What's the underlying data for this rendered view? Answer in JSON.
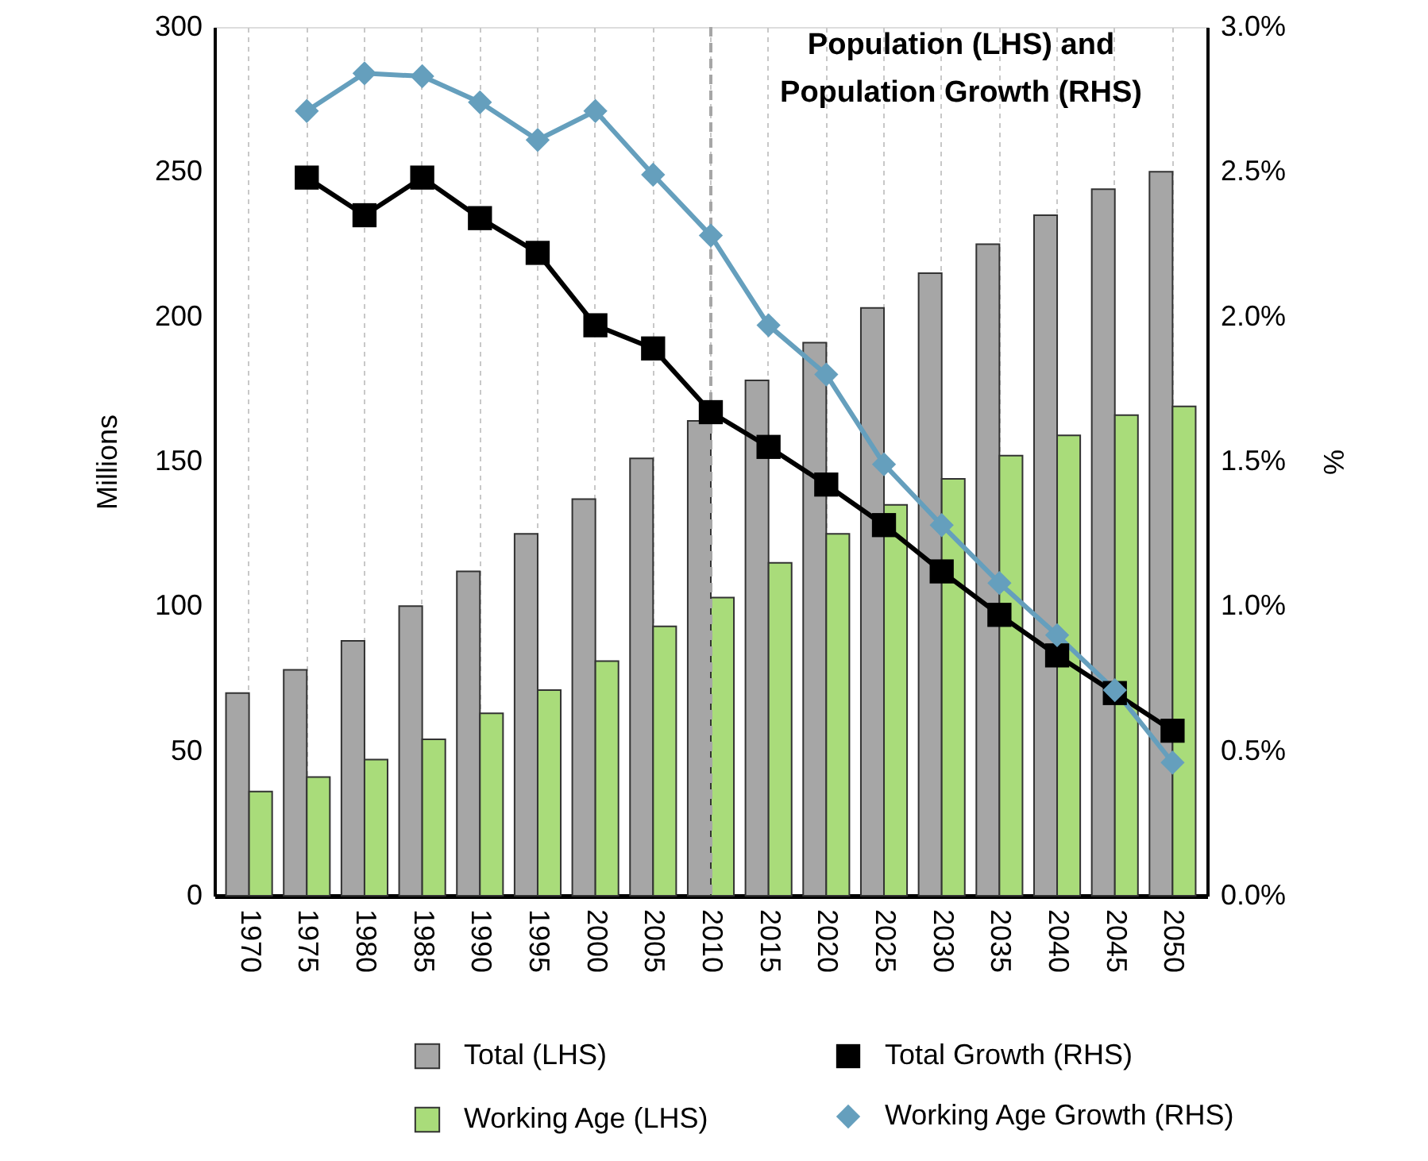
{
  "chart_data": {
    "type": "bar",
    "title": "Population (LHS) and\nPopulation Growth (RHS)",
    "categories": [
      "1970",
      "1975",
      "1980",
      "1985",
      "1990",
      "1995",
      "2000",
      "2005",
      "2010",
      "2015",
      "2020",
      "2025",
      "2030",
      "2035",
      "2040",
      "2045",
      "2050"
    ],
    "series": [
      {
        "name": "Total (LHS)",
        "color": "#a6a6a6",
        "values": [
          70,
          78,
          88,
          100,
          112,
          125,
          137,
          151,
          164,
          178,
          191,
          203,
          215,
          225,
          235,
          244,
          250
        ]
      },
      {
        "name": "Working Age (LHS)",
        "color": "#a9dc7a",
        "values": [
          36,
          41,
          47,
          54,
          63,
          71,
          81,
          93,
          103,
          115,
          125,
          135,
          144,
          152,
          159,
          166,
          169
        ]
      },
      {
        "name": "Total Growth (RHS)",
        "type": "line",
        "axis": "y2",
        "marker": "square",
        "color": "#000000",
        "values": [
          null,
          2.48,
          2.35,
          2.48,
          2.34,
          2.22,
          1.97,
          1.89,
          1.67,
          1.55,
          1.42,
          1.28,
          1.12,
          0.97,
          0.83,
          0.7,
          0.57
        ]
      },
      {
        "name": "Working Age Growth (RHS)",
        "type": "line",
        "axis": "y2",
        "marker": "diamond",
        "color": "#659fbd",
        "values": [
          null,
          2.71,
          2.84,
          2.83,
          2.74,
          2.61,
          2.71,
          2.49,
          2.28,
          1.97,
          1.8,
          1.49,
          1.28,
          1.08,
          0.9,
          0.71,
          0.46
        ]
      }
    ],
    "ylabel": "Millions",
    "y2label": "%",
    "ylim": [
      0,
      300
    ],
    "yticks": [
      0,
      50,
      100,
      150,
      200,
      250,
      300
    ],
    "y2lim": [
      0,
      3
    ],
    "y2ticks": [
      {
        "value": 0,
        "label": "0.0%"
      },
      {
        "value": 0.5,
        "label": "0.5%"
      },
      {
        "value": 1,
        "label": "1.0%"
      },
      {
        "value": 1.5,
        "label": "1.5%"
      },
      {
        "value": 2,
        "label": "2.0%"
      },
      {
        "value": 2.5,
        "label": "2.5%"
      },
      {
        "value": 3,
        "label": "3.0%"
      }
    ],
    "ref_lines": [
      {
        "axis": "x",
        "value": "2010",
        "color": "#a6a6a6",
        "line_style": "dashed"
      }
    ],
    "grid": "x",
    "legend": "bottom",
    "line_style": "solid"
  }
}
